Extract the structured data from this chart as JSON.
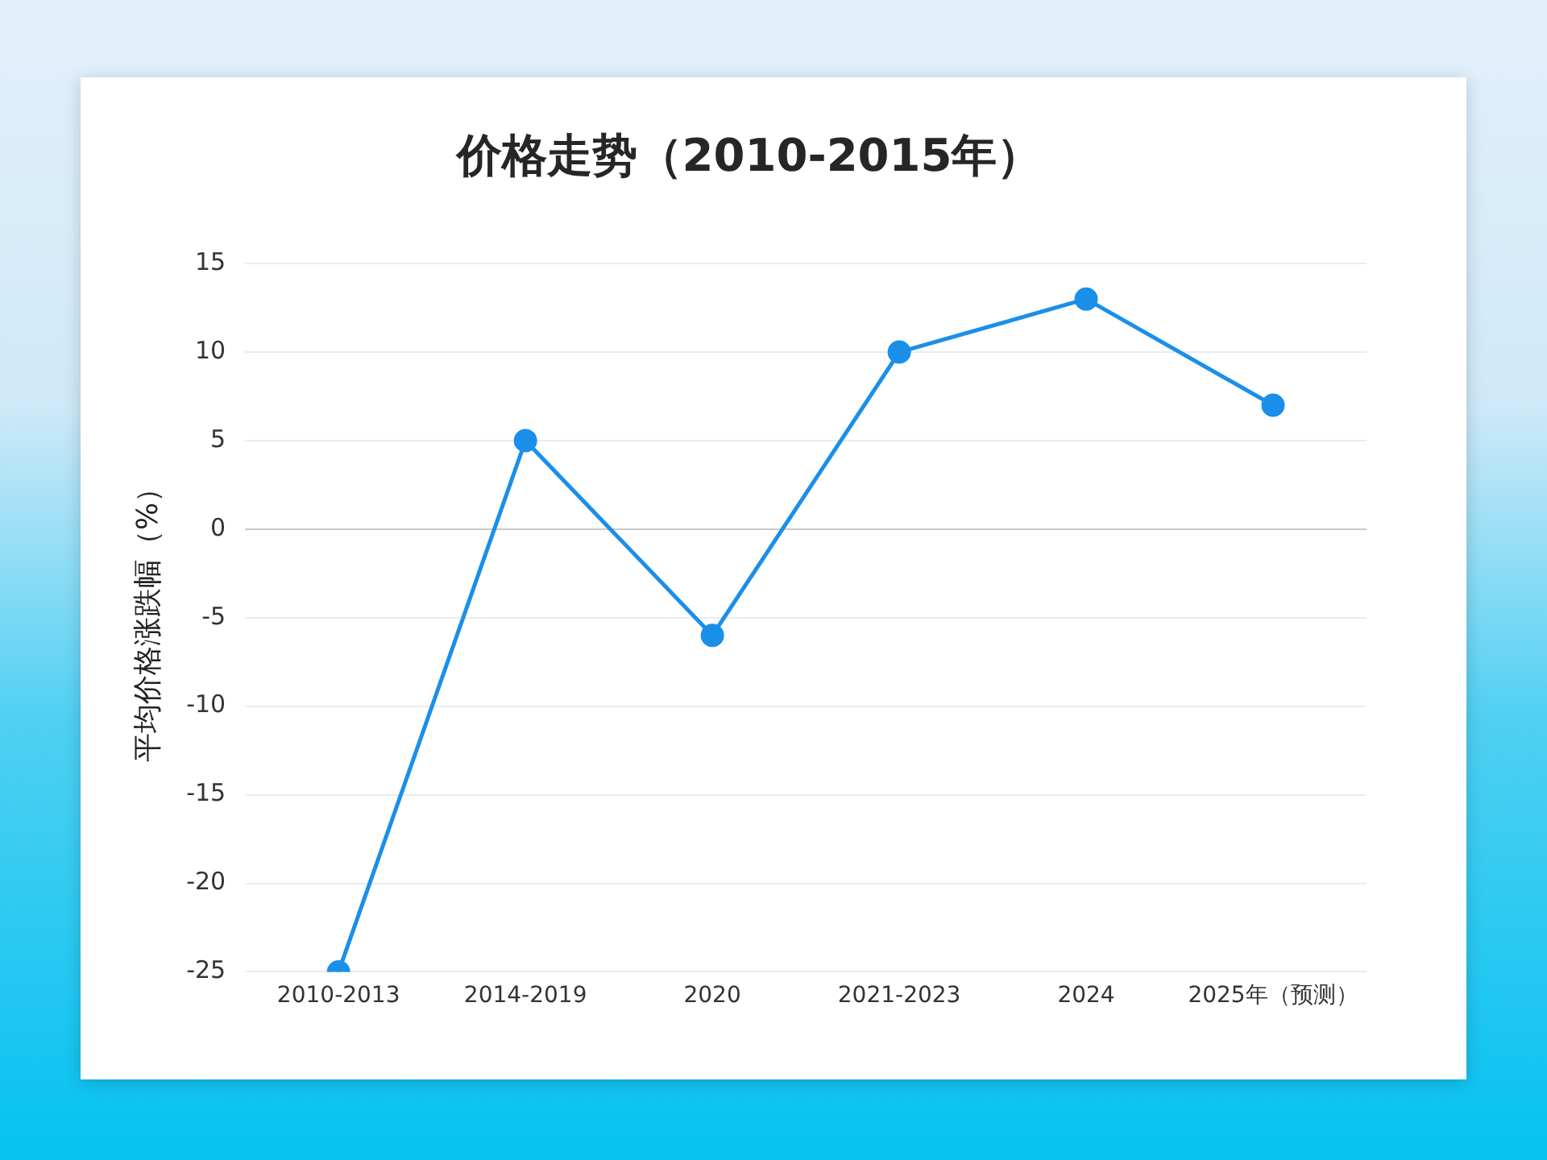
{
  "chart_data": {
    "type": "line",
    "title": "价格走势（2010-2015年）",
    "ylabel": "平均价格涨跌幅（%）",
    "categories": [
      "2010-2013",
      "2014-2019",
      "2020",
      "2021-2023",
      "2024",
      "2025年（预测）"
    ],
    "series": [
      {
        "color": "#1a8fea",
        "values": [
          -25,
          5,
          -6,
          10,
          13,
          7
        ]
      }
    ],
    "ylim": [
      -25,
      15
    ],
    "yticks": [
      -25,
      -20,
      -15,
      -10,
      -5,
      0,
      5,
      10,
      15
    ],
    "grid": "y",
    "marker": "circle",
    "line_style": "solid"
  }
}
